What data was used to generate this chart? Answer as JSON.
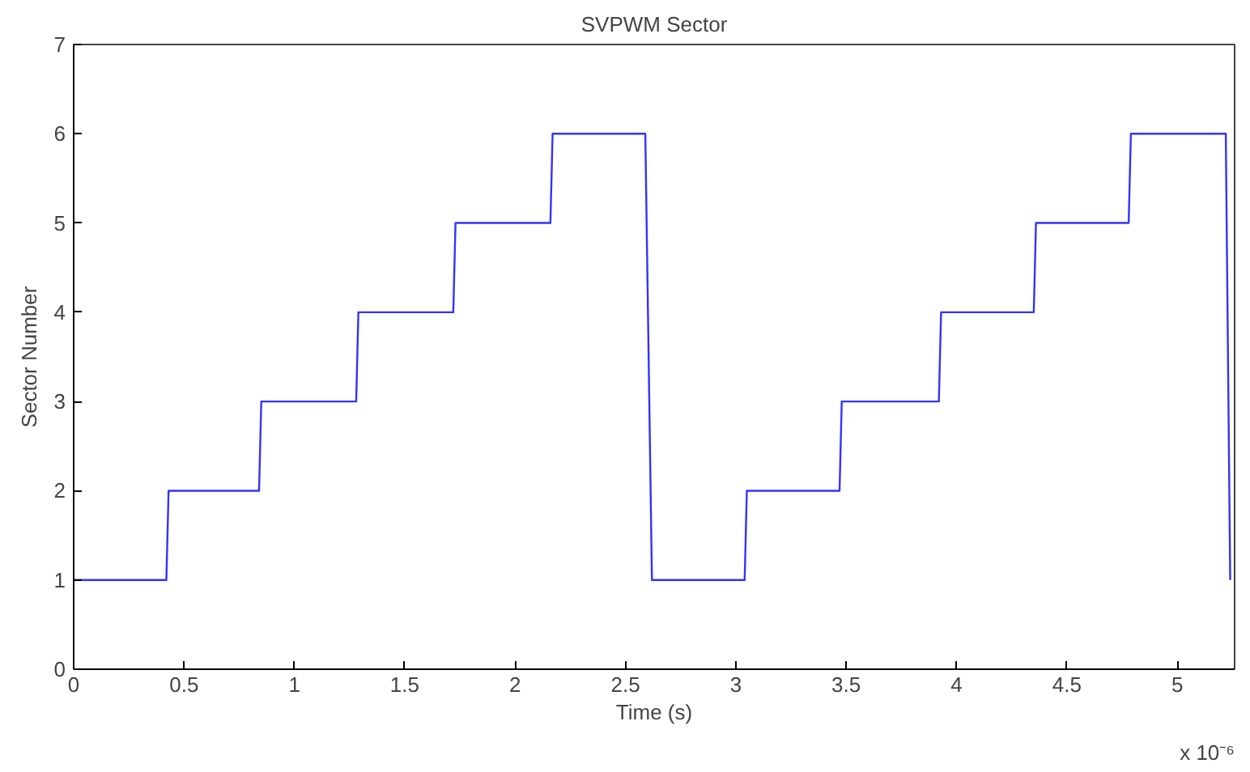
{
  "chart_data": {
    "type": "line",
    "title": "SVPWM Sector",
    "xlabel": "Time (s)",
    "ylabel": "Sector Number",
    "annotations": [
      "x 10⁻⁶"
    ],
    "x": [
      0,
      0.42,
      0.43,
      0.84,
      0.85,
      1.28,
      1.29,
      1.72,
      1.73,
      2.16,
      2.17,
      2.59,
      2.62,
      3.04,
      3.05,
      3.47,
      3.48,
      3.92,
      3.93,
      4.35,
      4.36,
      4.78,
      4.79,
      5.22,
      5.24
    ],
    "series": [
      {
        "color": "#3333ff",
        "values": [
          1,
          1,
          2,
          2,
          3,
          3,
          4,
          4,
          5,
          5,
          6,
          6,
          1,
          1,
          2,
          2,
          3,
          3,
          4,
          4,
          5,
          5,
          6,
          6,
          1
        ]
      }
    ],
    "xlim": [
      0,
      5.26
    ],
    "ylim": [
      0,
      7
    ],
    "xticks": [
      0,
      0.5,
      1,
      1.5,
      2,
      2.5,
      3,
      3.5,
      4,
      4.5,
      5
    ],
    "yticks": [
      0,
      1,
      2,
      3,
      4,
      5,
      6,
      7
    ],
    "grid": false,
    "marker": "none",
    "line_style": "solid"
  }
}
